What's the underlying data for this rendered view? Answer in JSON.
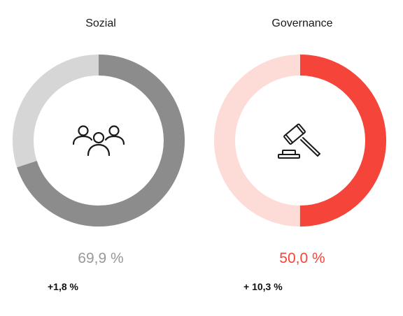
{
  "panels": [
    {
      "title": "Sozial",
      "value_label": "69,9 %",
      "value": 69.9,
      "change_label": "+1,8 %",
      "icon": "people-group-icon",
      "colors": {
        "fill": "#8c8c8c",
        "track": "#d6d6d6",
        "value_text": "#999999"
      }
    },
    {
      "title": "Governance",
      "value_label": "50,0 %",
      "value": 50.0,
      "change_label": "+ 10,3 %",
      "icon": "gavel-icon",
      "colors": {
        "fill": "#f5453a",
        "track": "#fddbd6",
        "value_text": "#f5453a"
      }
    }
  ]
}
